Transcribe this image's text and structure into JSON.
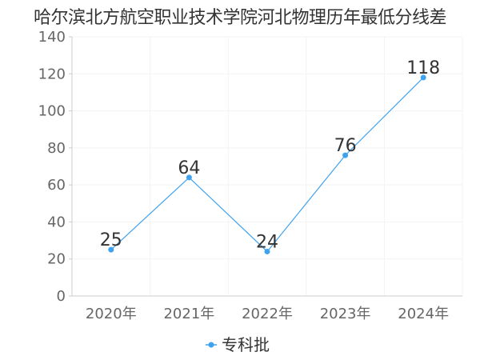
{
  "chart_data": {
    "type": "line",
    "title": "哈尔滨北方航空职业技术学院河北物理历年最低分线差",
    "categories": [
      "2020年",
      "2021年",
      "2022年",
      "2023年",
      "2024年"
    ],
    "series": [
      {
        "name": "专科批",
        "values": [
          25,
          64,
          24,
          76,
          118
        ],
        "color": "#3fa2ee"
      }
    ],
    "ylim": [
      0,
      140
    ],
    "yticks": [
      0,
      20,
      40,
      60,
      80,
      100,
      120,
      140
    ],
    "grid": true,
    "legend": "bottom-center"
  }
}
